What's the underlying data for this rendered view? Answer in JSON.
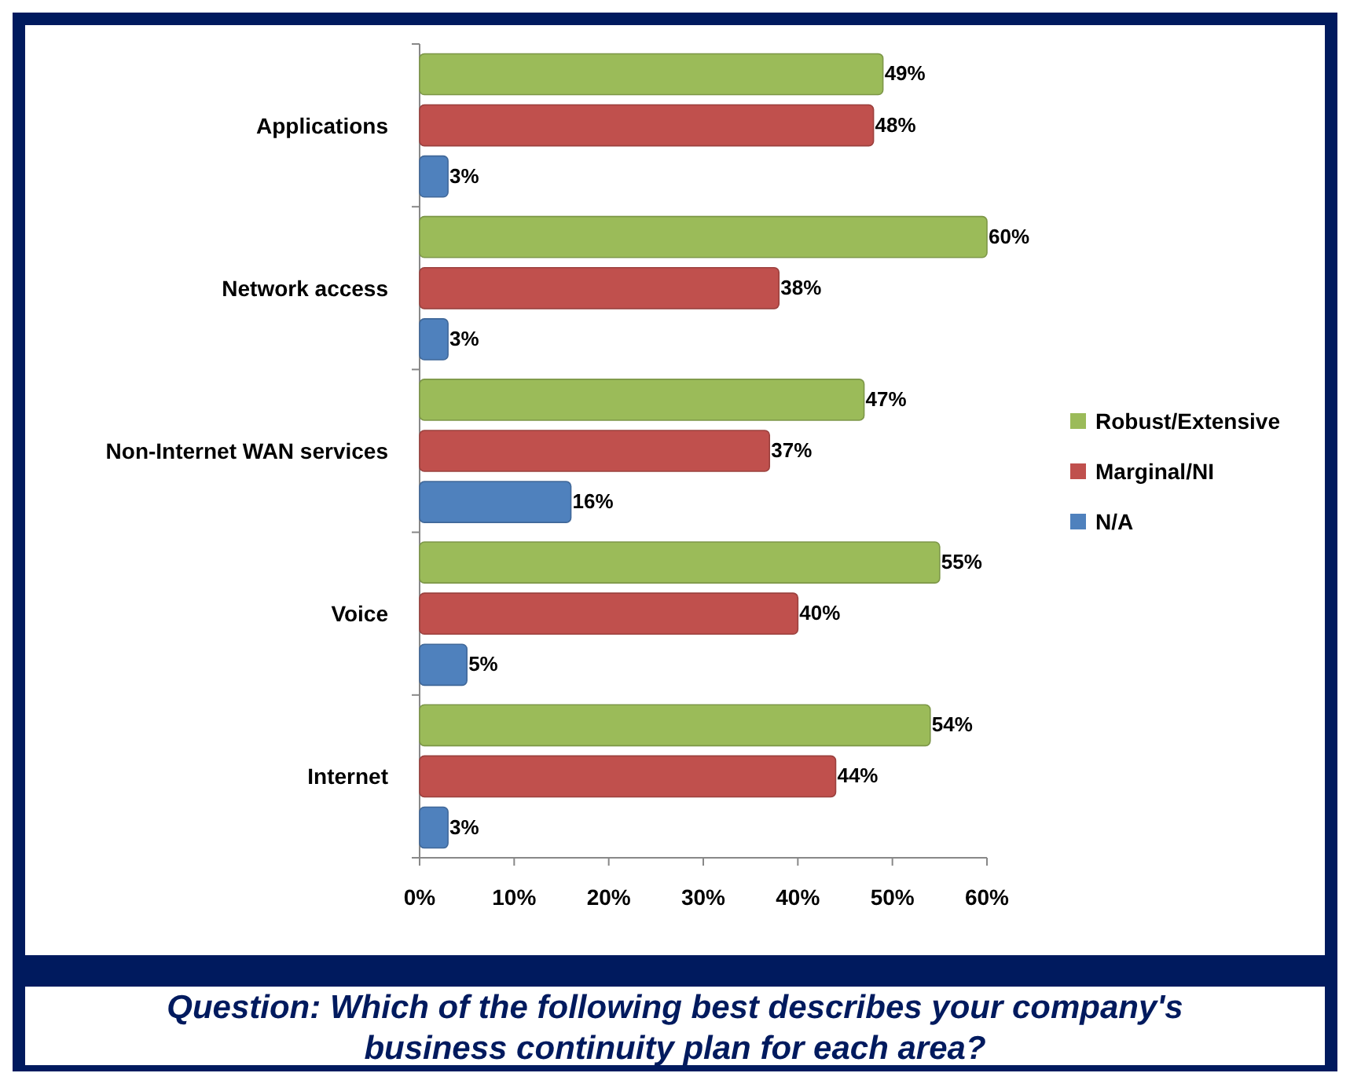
{
  "chart_data": {
    "type": "bar",
    "orientation": "horizontal",
    "categories": [
      "Applications",
      "Network access",
      "Non-Internet WAN services",
      "Voice",
      "Internet"
    ],
    "series": [
      {
        "name": "Robust/Extensive",
        "color": "#9bbb59",
        "values": [
          49,
          60,
          47,
          55,
          54
        ],
        "value_labels": [
          "49%",
          "60%",
          "47%",
          "55%",
          "54%"
        ]
      },
      {
        "name": "Marginal/NI",
        "color": "#c0504d",
        "values": [
          48,
          38,
          37,
          40,
          44
        ],
        "value_labels": [
          "48%",
          "38%",
          "37%",
          "40%",
          "44%"
        ]
      },
      {
        "name": "N/A",
        "color": "#4f81bd",
        "values": [
          3,
          3,
          16,
          5,
          3
        ],
        "value_labels": [
          "3%",
          "3%",
          "16%",
          "5%",
          "3%"
        ]
      }
    ],
    "xlim": [
      0,
      60
    ],
    "xticks": [
      {
        "value": 0,
        "label": "0%"
      },
      {
        "value": 10,
        "label": "10%"
      },
      {
        "value": 20,
        "label": "20%"
      },
      {
        "value": 30,
        "label": "30%"
      },
      {
        "value": 40,
        "label": "40%"
      },
      {
        "value": 50,
        "label": "50%"
      },
      {
        "value": 60,
        "label": "60%"
      }
    ],
    "legend": "right",
    "grid": false,
    "annotations": [
      "Question: Which of the following best describes your company's business continuity plan for each area?"
    ]
  }
}
